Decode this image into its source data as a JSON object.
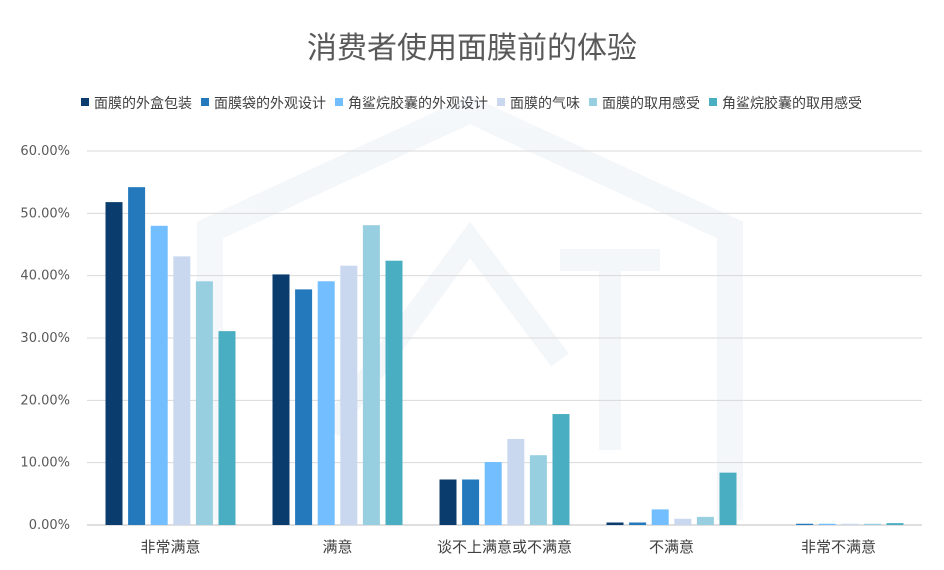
{
  "chart_data": {
    "type": "bar",
    "title": "消费者使用面膜前的体验",
    "categories": [
      "非常满意",
      "满意",
      "谈不上满意或不满意",
      "不满意",
      "非常不满意"
    ],
    "series": [
      {
        "name": "面膜的外盒包装",
        "color": "#0b3c6e",
        "values": [
          51.8,
          40.2,
          7.3,
          0.4,
          0.0
        ]
      },
      {
        "name": "面膜袋的外观设计",
        "color": "#2479bd",
        "values": [
          54.2,
          37.8,
          7.3,
          0.4,
          0.2
        ]
      },
      {
        "name": "角鲨烷胶囊的外观设计",
        "color": "#72beff",
        "values": [
          48.0,
          39.1,
          10.1,
          2.5,
          0.2
        ]
      },
      {
        "name": "面膜的气味",
        "color": "#c9d8ef",
        "values": [
          43.1,
          41.6,
          13.8,
          1.0,
          0.2
        ]
      },
      {
        "name": "面膜的取用感受",
        "color": "#98cfe0",
        "values": [
          39.1,
          48.1,
          11.2,
          1.3,
          0.2
        ]
      },
      {
        "name": "角鲨烷胶囊的取用感受",
        "color": "#4aaec2",
        "values": [
          31.1,
          42.4,
          17.8,
          8.4,
          0.3
        ]
      }
    ],
    "ylim": [
      0,
      60
    ],
    "yticks": [
      "0.00%",
      "10.00%",
      "20.00%",
      "30.00%",
      "40.00%",
      "50.00%",
      "60.00%"
    ],
    "ytick_values": [
      0,
      10,
      20,
      30,
      40,
      50,
      60
    ],
    "grid": true,
    "legend_position": "top"
  }
}
